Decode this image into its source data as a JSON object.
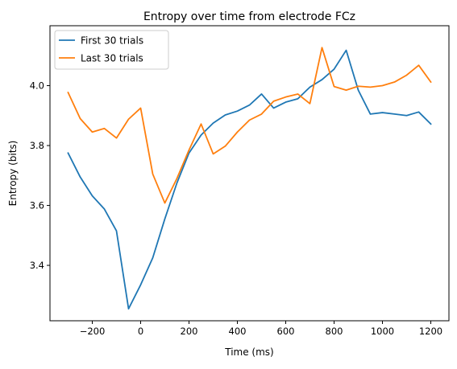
{
  "chart_data": {
    "type": "line",
    "title": "Entropy over time from electrode FCz",
    "xlabel": "Time (ms)",
    "ylabel": "Entropy (bits)",
    "xlim": [
      -375,
      1275
    ],
    "ylim": [
      3.215,
      4.2
    ],
    "xticks": [
      -200,
      0,
      200,
      400,
      600,
      800,
      1000,
      1200
    ],
    "xtick_labels": [
      "−200",
      "0",
      "200",
      "400",
      "600",
      "800",
      "1000",
      "1200"
    ],
    "yticks": [
      3.4,
      3.6,
      3.8,
      4.0
    ],
    "ytick_labels": [
      "3.4",
      "3.6",
      "3.8",
      "4.0"
    ],
    "grid": false,
    "legend_position": "top-left",
    "x": [
      -300,
      -250,
      -200,
      -150,
      -100,
      -50,
      0,
      50,
      100,
      150,
      200,
      250,
      300,
      350,
      400,
      450,
      500,
      550,
      600,
      650,
      700,
      750,
      800,
      850,
      900,
      950,
      1000,
      1050,
      1100,
      1150,
      1200
    ],
    "series": [
      {
        "name": "First 30 trials",
        "color": "#1f77b4",
        "values": [
          3.775,
          3.695,
          3.632,
          3.588,
          3.515,
          3.255,
          3.335,
          3.425,
          3.555,
          3.675,
          3.775,
          3.835,
          3.875,
          3.902,
          3.915,
          3.935,
          3.972,
          3.925,
          3.945,
          3.956,
          3.995,
          4.02,
          4.055,
          4.118,
          3.985,
          3.905,
          3.91,
          3.905,
          3.9,
          3.912,
          3.872
        ]
      },
      {
        "name": "Last 30 trials",
        "color": "#ff7f0e",
        "values": [
          3.977,
          3.89,
          3.845,
          3.857,
          3.825,
          3.888,
          3.925,
          3.705,
          3.608,
          3.69,
          3.785,
          3.872,
          3.772,
          3.798,
          3.845,
          3.885,
          3.905,
          3.948,
          3.962,
          3.972,
          3.94,
          4.127,
          3.997,
          3.985,
          3.998,
          3.995,
          4.0,
          4.012,
          4.035,
          4.068,
          4.012
        ]
      }
    ]
  }
}
